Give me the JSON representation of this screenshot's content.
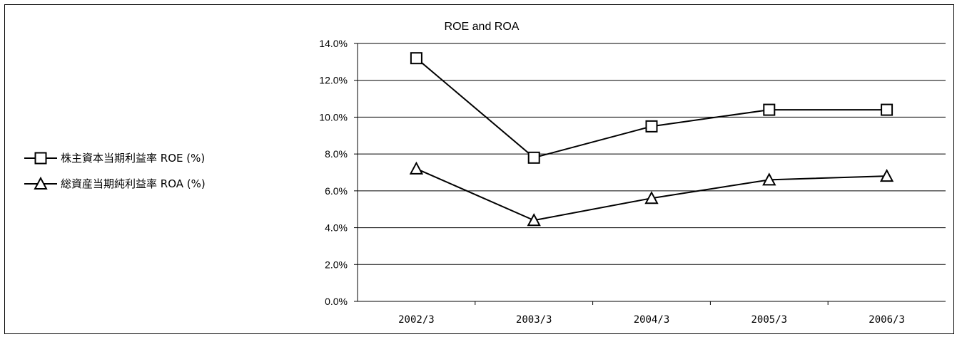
{
  "chart_data": {
    "type": "line",
    "title": "ROE and ROA",
    "categories": [
      "2002/3",
      "2003/3",
      "2004/3",
      "2005/3",
      "2006/3"
    ],
    "series": [
      {
        "name": "株主資本当期利益率  ROE (%)",
        "marker": "square",
        "values": [
          13.2,
          7.8,
          9.5,
          10.4,
          10.4
        ]
      },
      {
        "name": "総資産当期純利益率  ROA (%)",
        "marker": "triangle",
        "values": [
          7.2,
          4.4,
          5.6,
          6.6,
          6.8
        ]
      }
    ],
    "ylim": [
      0,
      14
    ],
    "yticks": [
      "0.0%",
      "2.0%",
      "4.0%",
      "6.0%",
      "8.0%",
      "10.0%",
      "12.0%",
      "14.0%"
    ],
    "ytick_values": [
      0,
      2,
      4,
      6,
      8,
      10,
      12,
      14
    ],
    "grid": true,
    "legend_position": "left",
    "line_color": "#000000",
    "background_color": "#ffffff"
  }
}
